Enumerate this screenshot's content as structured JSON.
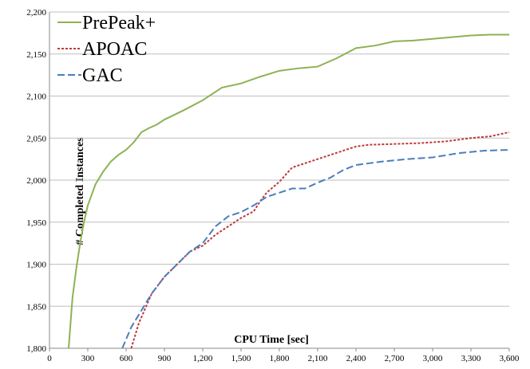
{
  "chart_data": {
    "type": "line",
    "x_label": "CPU Time [sec]",
    "y_label": "# Completed Instances",
    "xlim": [
      0,
      3600
    ],
    "ylim": [
      1800,
      2200
    ],
    "xticks": [
      0,
      300,
      600,
      900,
      {
        "value": 1200,
        "label": "1,200"
      },
      {
        "value": 1500,
        "label": "1,500"
      },
      {
        "value": 1800,
        "label": "1,800"
      },
      {
        "value": 2100,
        "label": "2,100"
      },
      {
        "value": 2400,
        "label": "2,400"
      },
      {
        "value": 2700,
        "label": "2,700"
      },
      {
        "value": 3000,
        "label": "3,000"
      },
      {
        "value": 3300,
        "label": "3,300"
      },
      {
        "value": 3600,
        "label": "3,600"
      }
    ],
    "yticks": [
      {
        "value": 1800,
        "label": "1,800"
      },
      {
        "value": 1850,
        "label": "1,850"
      },
      {
        "value": 1900,
        "label": "1,900"
      },
      {
        "value": 1950,
        "label": "1,950"
      },
      {
        "value": 2000,
        "label": "2,000"
      },
      {
        "value": 2050,
        "label": "2,050"
      },
      {
        "value": 2100,
        "label": "2,100"
      },
      {
        "value": 2150,
        "label": "2,150"
      },
      {
        "value": 2200,
        "label": "2,200"
      }
    ],
    "grid": true,
    "legend": "top-left",
    "series": [
      {
        "name": "PrePeak+",
        "color": "#8db255",
        "dash": "none",
        "x": [
          150,
          180,
          210,
          240,
          270,
          300,
          360,
          420,
          480,
          540,
          600,
          660,
          720,
          780,
          840,
          900,
          1050,
          1200,
          1350,
          1500,
          1650,
          1800,
          1950,
          2100,
          2250,
          2400,
          2550,
          2700,
          2850,
          3000,
          3150,
          3300,
          3450,
          3600
        ],
        "values": [
          1800,
          1860,
          1895,
          1925,
          1950,
          1970,
          1995,
          2010,
          2022,
          2030,
          2036,
          2045,
          2057,
          2062,
          2066,
          2072,
          2083,
          2095,
          2110,
          2115,
          2123,
          2130,
          2133,
          2135,
          2145,
          2157,
          2160,
          2165,
          2166,
          2168,
          2170,
          2172,
          2173,
          2173
        ]
      },
      {
        "name": "APOAC",
        "color": "#c0393b",
        "dash": "3,2",
        "x": [
          640,
          700,
          800,
          900,
          1000,
          1100,
          1200,
          1300,
          1400,
          1500,
          1600,
          1650,
          1700,
          1800,
          1900,
          2000,
          2100,
          2200,
          2300,
          2400,
          2500,
          2700,
          2900,
          3100,
          3300,
          3450,
          3600
        ],
        "values": [
          1800,
          1830,
          1865,
          1885,
          1900,
          1915,
          1922,
          1935,
          1945,
          1955,
          1963,
          1975,
          1985,
          1998,
          2015,
          2020,
          2025,
          2030,
          2035,
          2040,
          2042,
          2043,
          2044,
          2046,
          2050,
          2052,
          2057
        ]
      },
      {
        "name": "GAC",
        "color": "#4a7ebb",
        "dash": "9,4",
        "x": [
          570,
          640,
          700,
          800,
          900,
          1000,
          1100,
          1200,
          1300,
          1400,
          1500,
          1600,
          1700,
          1800,
          1900,
          2000,
          2100,
          2200,
          2300,
          2400,
          2600,
          2800,
          3000,
          3200,
          3400,
          3600
        ],
        "values": [
          1800,
          1825,
          1840,
          1865,
          1885,
          1900,
          1915,
          1925,
          1945,
          1957,
          1962,
          1970,
          1980,
          1985,
          1990,
          1990,
          1997,
          2003,
          2012,
          2018,
          2022,
          2025,
          2027,
          2032,
          2035,
          2036
        ]
      }
    ]
  }
}
